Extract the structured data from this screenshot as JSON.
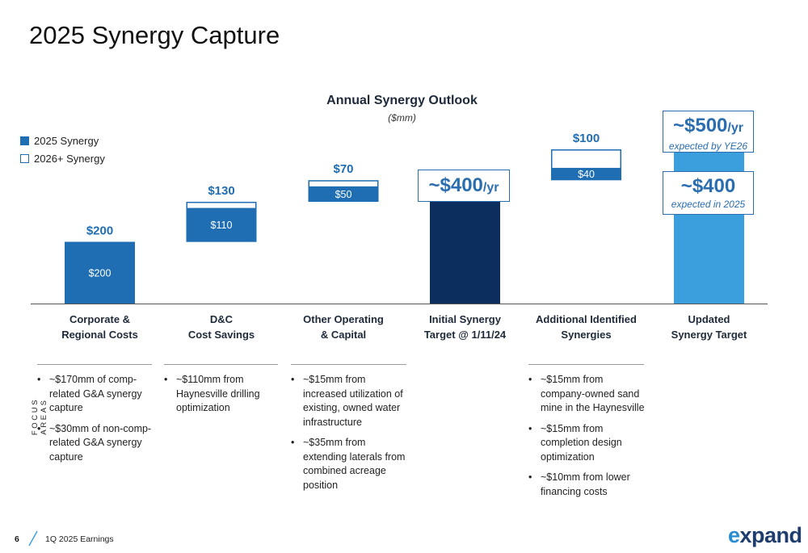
{
  "title": "2025 Synergy Capture",
  "legend": {
    "synergy_2025": "2025 Synergy",
    "synergy_2026": "2026+ Synergy"
  },
  "colors": {
    "synergy_2025": "#1f6db3",
    "outline": "#1f6db3",
    "initial_target": "#0b2e5e",
    "updated_target": "#3a9fdc",
    "header_navy": "#1e2a3a"
  },
  "chart_data": {
    "type": "bar",
    "title": "Annual Synergy Outlook",
    "subtitle": "($mm)",
    "categories": [
      "Corporate &\nRegional Costs",
      "D&C\nCost Savings",
      "Other Operating\n& Capital",
      "Initial Synergy\nTarget @ 1/11/24",
      "Additional Identified\nSynergies",
      "Updated\nSynergy Target"
    ],
    "bars": [
      {
        "kind": "step",
        "base": 0,
        "total": 200,
        "synergy_2025": 200,
        "total_label": "$200",
        "inner_label": "$200"
      },
      {
        "kind": "step",
        "base": 200,
        "total": 130,
        "synergy_2025": 110,
        "total_label": "$130",
        "inner_label": "$110"
      },
      {
        "kind": "step",
        "base": 330,
        "total": 70,
        "synergy_2025": 50,
        "total_label": "$70",
        "inner_label": "$50"
      },
      {
        "kind": "total",
        "base": 0,
        "total": 400,
        "fill": "initial_target"
      },
      {
        "kind": "step",
        "base": 400,
        "total": 100,
        "synergy_2025": 40,
        "total_label": "$100",
        "inner_label": "$40"
      },
      {
        "kind": "total",
        "base": 0,
        "total": 500,
        "fill": "updated_target"
      }
    ],
    "callouts": {
      "initial": {
        "value": "~$400",
        "unit": "/yr"
      },
      "updated_500": {
        "value": "~$500",
        "unit": "/yr",
        "note": "expected by YE26"
      },
      "updated_400": {
        "value": "~$400",
        "note": "expected in 2025"
      }
    },
    "legend_position": "top-left",
    "grid": false
  },
  "focus_areas_label": "FOCUS AREAS",
  "notes": [
    [
      "~$170mm of comp-related G&A synergy capture",
      "~$30mm of non-comp-related G&A synergy capture"
    ],
    [
      "~$110mm from Haynesville drilling optimization"
    ],
    [
      "~$15mm from increased utilization of existing, owned water infrastructure",
      "~$35mm from extending laterals from combined acreage position"
    ],
    [],
    [
      "~$15mm from company-owned sand mine in the Haynesville",
      "~$15mm from completion design optimization",
      "~$10mm from lower financing costs"
    ],
    []
  ],
  "footer": {
    "page_number": "6",
    "text": "1Q 2025 Earnings",
    "logo": "expand"
  }
}
